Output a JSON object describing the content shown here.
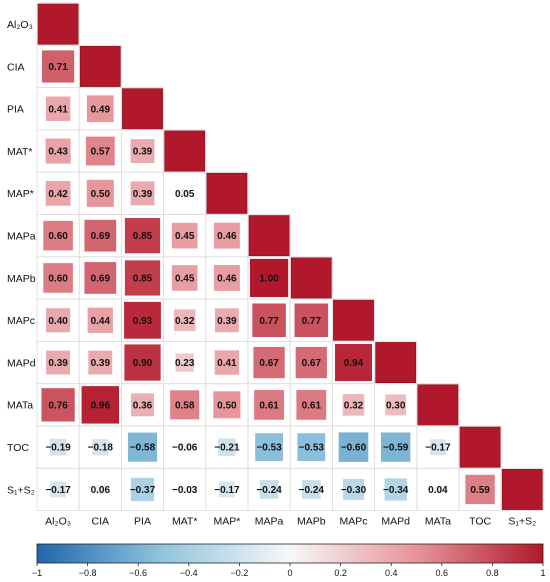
{
  "chart_data": {
    "type": "heatmap",
    "variables": [
      "Al₂O₃",
      "CIA",
      "PIA",
      "MAT*",
      "MAP*",
      "MAPa",
      "MAPb",
      "MAPc",
      "MAPd",
      "MATa",
      "TOC",
      "S₁+S₂"
    ],
    "matrix": [
      [
        1
      ],
      [
        0.71,
        1
      ],
      [
        0.41,
        0.49,
        1
      ],
      [
        0.43,
        0.57,
        0.39,
        1
      ],
      [
        0.42,
        0.5,
        0.39,
        0.05,
        1
      ],
      [
        0.6,
        0.69,
        0.85,
        0.45,
        0.46,
        1
      ],
      [
        0.6,
        0.69,
        0.85,
        0.45,
        0.46,
        1.0,
        1
      ],
      [
        0.4,
        0.44,
        0.93,
        0.32,
        0.39,
        0.77,
        0.77,
        1
      ],
      [
        0.39,
        0.39,
        0.9,
        0.23,
        0.41,
        0.67,
        0.67,
        0.94,
        1
      ],
      [
        0.76,
        0.96,
        0.36,
        0.58,
        0.5,
        0.61,
        0.61,
        0.32,
        0.3,
        1
      ],
      [
        -0.19,
        -0.18,
        -0.58,
        -0.06,
        -0.21,
        -0.53,
        -0.53,
        -0.6,
        -0.59,
        -0.17,
        1
      ],
      [
        -0.17,
        0.06,
        -0.37,
        -0.03,
        -0.17,
        -0.24,
        -0.24,
        -0.3,
        -0.34,
        0.04,
        0.59,
        1
      ]
    ],
    "cell_labels": [
      [
        ""
      ],
      [
        "0.71",
        ""
      ],
      [
        "0.41",
        "0.49",
        ""
      ],
      [
        "0.43",
        "0.57",
        "0.39",
        ""
      ],
      [
        "0.42",
        "0.50",
        "0.39",
        "0.05",
        ""
      ],
      [
        "0.60",
        "0.69",
        "0.85",
        "0.45",
        "0.46",
        ""
      ],
      [
        "0.60",
        "0.69",
        "0.85",
        "0.45",
        "0.46",
        "1.00",
        ""
      ],
      [
        "0.40",
        "0.44",
        "0.93",
        "0.32",
        "0.39",
        "0.77",
        "0.77",
        ""
      ],
      [
        "0.39",
        "0.39",
        "0.90",
        "0.23",
        "0.41",
        "0.67",
        "0.67",
        "0.94",
        ""
      ],
      [
        "0.76",
        "0.96",
        "0.36",
        "0.58",
        "0.50",
        "0.61",
        "0.61",
        "0.32",
        "0.30",
        ""
      ],
      [
        "−0.19",
        "−0.18",
        "−0.58",
        "−0.06",
        "−0.21",
        "−0.53",
        "−0.53",
        "−0.60",
        "−0.59",
        "−0.17",
        ""
      ],
      [
        "−0.17",
        "0.06",
        "−0.37",
        "−0.03",
        "−0.17",
        "−0.24",
        "−0.24",
        "−0.30",
        "−0.34",
        "0.04",
        "0.59",
        ""
      ]
    ],
    "colorbar": {
      "range": [
        -1,
        1
      ],
      "ticks": [
        "−1",
        "−0.8",
        "−0.6",
        "−0.4",
        "−0.2",
        "0",
        "0.2",
        "0.4",
        "0.6",
        "0.8",
        "1"
      ],
      "colors": {
        "negative": "#2166ac",
        "zero": "#f7f7f7",
        "positive": "#b2182b"
      }
    },
    "lower_triangle": true,
    "marker_size_scaled": true
  }
}
